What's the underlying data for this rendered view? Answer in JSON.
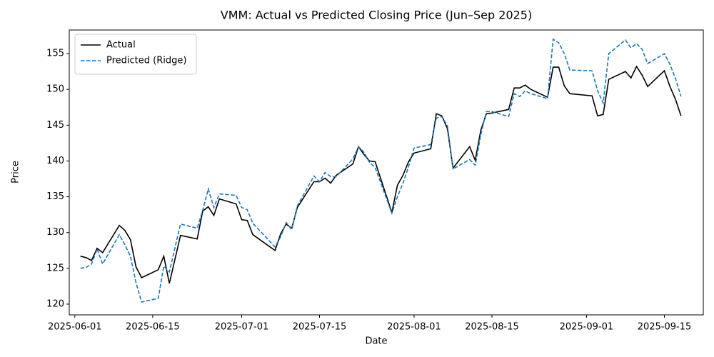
{
  "chart_data": {
    "type": "line",
    "title": "VMM: Actual vs Predicted Closing Price (Jun–Sep 2025)",
    "x_label": "Date",
    "y_label": "Price",
    "x": [
      "2025-06-02",
      "2025-06-03",
      "2025-06-04",
      "2025-06-05",
      "2025-06-06",
      "2025-06-09",
      "2025-06-10",
      "2025-06-11",
      "2025-06-12",
      "2025-06-13",
      "2025-06-16",
      "2025-06-17",
      "2025-06-18",
      "2025-06-20",
      "2025-06-23",
      "2025-06-24",
      "2025-06-25",
      "2025-06-26",
      "2025-06-27",
      "2025-06-30",
      "2025-07-01",
      "2025-07-02",
      "2025-07-03",
      "2025-07-07",
      "2025-07-08",
      "2025-07-09",
      "2025-07-10",
      "2025-07-11",
      "2025-07-14",
      "2025-07-15",
      "2025-07-16",
      "2025-07-17",
      "2025-07-18",
      "2025-07-21",
      "2025-07-22",
      "2025-07-23",
      "2025-07-24",
      "2025-07-25",
      "2025-07-28",
      "2025-07-29",
      "2025-07-30",
      "2025-07-31",
      "2025-08-01",
      "2025-08-04",
      "2025-08-05",
      "2025-08-06",
      "2025-08-07",
      "2025-08-08",
      "2025-08-11",
      "2025-08-12",
      "2025-08-13",
      "2025-08-14",
      "2025-08-15",
      "2025-08-18",
      "2025-08-19",
      "2025-08-20",
      "2025-08-21",
      "2025-08-22",
      "2025-08-25",
      "2025-08-26",
      "2025-08-27",
      "2025-08-28",
      "2025-08-29",
      "2025-09-02",
      "2025-09-03",
      "2025-09-04",
      "2025-09-05",
      "2025-09-08",
      "2025-09-09",
      "2025-09-10",
      "2025-09-11",
      "2025-09-12",
      "2025-09-15",
      "2025-09-16",
      "2025-09-17",
      "2025-09-18"
    ],
    "series": [
      {
        "name": "Actual",
        "color": "#000000",
        "dash": false,
        "values": [
          126.7,
          126.5,
          126.1,
          127.8,
          127.2,
          131.0,
          130.3,
          129.0,
          125.2,
          123.7,
          124.8,
          126.7,
          122.9,
          129.6,
          129.1,
          133.0,
          133.6,
          132.4,
          134.7,
          134.0,
          131.8,
          131.7,
          129.7,
          127.5,
          129.8,
          131.2,
          130.6,
          133.5,
          137.1,
          137.1,
          137.6,
          136.9,
          138.0,
          139.6,
          142.0,
          140.9,
          140.0,
          139.9,
          132.8,
          136.6,
          138.0,
          139.9,
          141.1,
          141.7,
          146.6,
          146.3,
          144.5,
          139.0,
          142.0,
          140.1,
          144.3,
          146.6,
          146.7,
          147.2,
          150.2,
          150.2,
          150.6,
          150.0,
          148.9,
          153.1,
          153.1,
          150.5,
          149.4,
          149.1,
          146.3,
          146.5,
          151.4,
          152.5,
          151.6,
          153.2,
          152.0,
          150.4,
          152.6,
          150.4,
          148.6,
          146.3
        ]
      },
      {
        "name": "Predicted (Ridge)",
        "color": "#1f77b4",
        "dash": true,
        "values": [
          125.0,
          125.1,
          125.6,
          127.7,
          125.6,
          129.7,
          128.3,
          126.7,
          123.0,
          120.3,
          120.8,
          125.3,
          124.5,
          131.2,
          130.6,
          133.1,
          136.1,
          133.5,
          135.4,
          135.2,
          133.5,
          133.2,
          131.3,
          128.0,
          129.4,
          131.4,
          130.4,
          133.7,
          137.9,
          137.1,
          138.4,
          137.8,
          137.8,
          140.3,
          142.0,
          141.2,
          139.8,
          139.1,
          132.7,
          135.0,
          136.9,
          139.2,
          141.8,
          142.3,
          146.0,
          146.2,
          144.9,
          138.9,
          140.2,
          139.4,
          143.7,
          146.9,
          146.9,
          146.2,
          149.4,
          149.0,
          149.8,
          149.4,
          148.7,
          157.0,
          156.5,
          155.0,
          152.7,
          152.6,
          149.8,
          148.1,
          155.0,
          156.9,
          155.8,
          156.4,
          155.6,
          153.6,
          155.0,
          153.5,
          151.5,
          149.0
        ]
      }
    ],
    "xlim": [
      "2025-05-31",
      "2025-09-22"
    ],
    "xticks": [
      "2025-06-01",
      "2025-06-15",
      "2025-07-01",
      "2025-07-15",
      "2025-08-01",
      "2025-08-15",
      "2025-09-01",
      "2025-09-15"
    ],
    "ylim": [
      118.5,
      158.3
    ],
    "yticks": [
      120,
      125,
      130,
      135,
      140,
      145,
      150,
      155
    ],
    "legend": "upper left",
    "grid": false
  }
}
